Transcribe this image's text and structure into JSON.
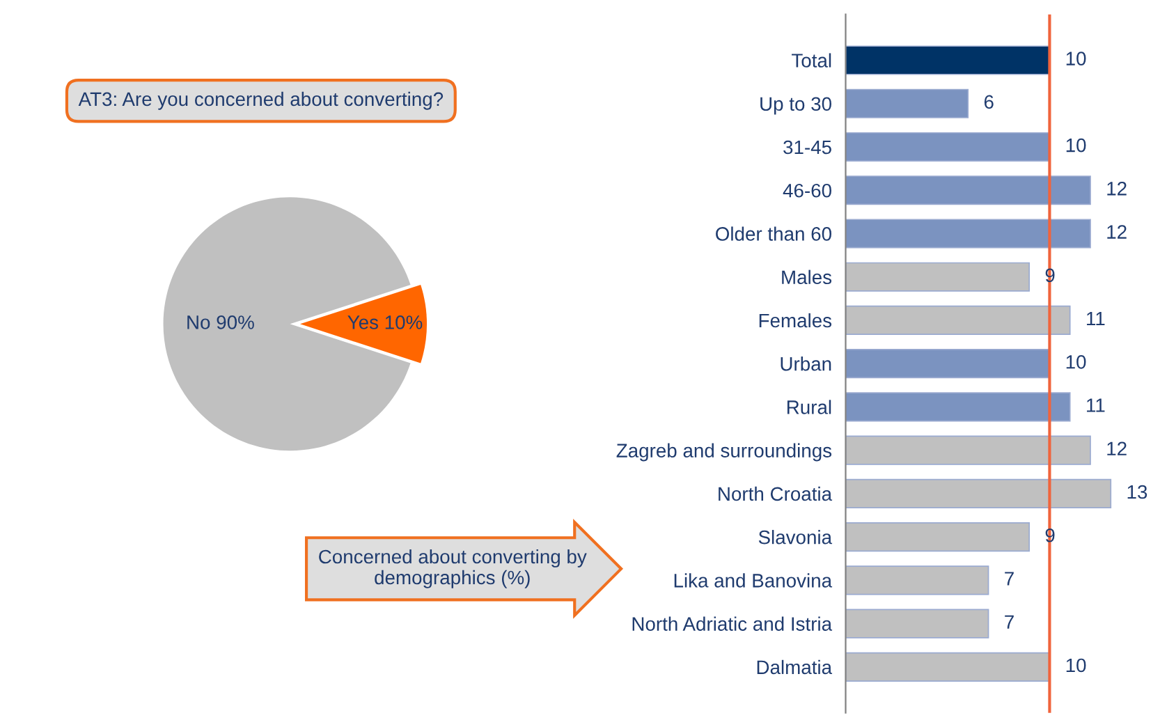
{
  "chart_data": [
    {
      "type": "pie",
      "title": "AT3: Are you concerned about converting?",
      "categories": [
        "No",
        "Yes"
      ],
      "values": [
        90,
        10
      ],
      "colors": [
        "#c0c0c0",
        "#ff6600"
      ],
      "value_labels": [
        "90%",
        "10%"
      ]
    },
    {
      "type": "bar",
      "orientation": "horizontal",
      "title": "Concerned about converting by demographics (%)",
      "categories": [
        "Total",
        "Up to 30",
        "31-45",
        "46-60",
        "Older than 60",
        "Males",
        "Females",
        "Urban",
        "Rural",
        "Zagreb and surroundings",
        "North Croatia",
        "Slavonia",
        "Lika and Banovina",
        "North Adriatic and Istria",
        "Dalmatia"
      ],
      "values": [
        10,
        6,
        10,
        12,
        12,
        9,
        11,
        10,
        11,
        12,
        13,
        9,
        7,
        7,
        10
      ],
      "colors": [
        "#003366",
        "#7b93c0",
        "#7b93c0",
        "#7b93c0",
        "#7b93c0",
        "#c0c0c0",
        "#c0c0c0",
        "#7b93c0",
        "#7b93c0",
        "#c0c0c0",
        "#c0c0c0",
        "#c0c0c0",
        "#c0c0c0",
        "#c0c0c0",
        "#c0c0c0"
      ],
      "data_labels": true,
      "tick_labels": "y",
      "ref_lines": [
        {
          "axis": "x",
          "value": 10,
          "color": "#f0643c"
        }
      ]
    }
  ]
}
